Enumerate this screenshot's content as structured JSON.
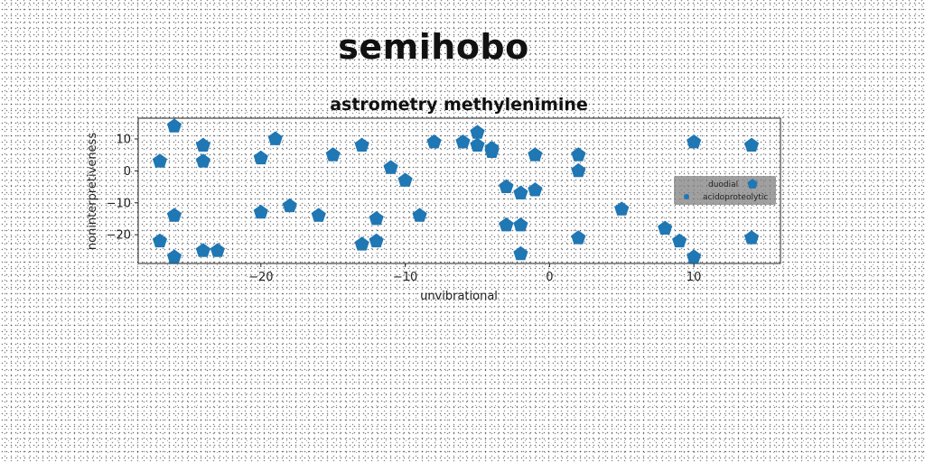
{
  "figure_title": "semihobo",
  "chart_data": {
    "type": "scatter",
    "title": "astrometry methylenimine",
    "xlabel": "unvibrational",
    "ylabel": "noninterpretiveness",
    "xlim": [
      -28.5,
      16
    ],
    "ylim": [
      -29,
      16.5
    ],
    "xticks": [
      -20,
      -10,
      0,
      10
    ],
    "yticks": [
      -20,
      -10,
      0,
      10
    ],
    "xtick_labels": [
      "−20",
      "−10",
      "0",
      "10"
    ],
    "ytick_labels": [
      "−20",
      "−10",
      "0",
      "10"
    ],
    "grid": false,
    "legend_position": "right",
    "legend_facecolor": "#808080",
    "series": [
      {
        "name": "duodial",
        "marker": "pentagon",
        "color": "#1f77b4",
        "points": [
          [
            -26,
            14
          ],
          [
            -27,
            3
          ],
          [
            -24,
            8
          ],
          [
            -24,
            3
          ],
          [
            -26,
            -14
          ],
          [
            -27,
            -22
          ],
          [
            -26,
            -27
          ],
          [
            -24,
            -25
          ],
          [
            -23,
            -25
          ],
          [
            -20,
            4
          ],
          [
            -19,
            10
          ],
          [
            -20,
            -13
          ],
          [
            -18,
            -11
          ],
          [
            -16,
            -14
          ],
          [
            -15,
            5
          ],
          [
            -13,
            8
          ],
          [
            -12,
            -15
          ],
          [
            -13,
            -23
          ],
          [
            -12,
            -22
          ],
          [
            -11,
            1
          ],
          [
            -10,
            -3
          ],
          [
            -9,
            -14
          ],
          [
            -8,
            9
          ],
          [
            -6,
            9
          ],
          [
            -5,
            12
          ],
          [
            -5,
            8
          ],
          [
            -4,
            7
          ],
          [
            -4,
            6
          ],
          [
            -3,
            -5
          ],
          [
            -2,
            -7
          ],
          [
            -3,
            -17
          ],
          [
            -2,
            -17
          ],
          [
            -2,
            -26
          ],
          [
            -1,
            5
          ],
          [
            -1,
            -6
          ],
          [
            2,
            5
          ],
          [
            2,
            0
          ],
          [
            2,
            -21
          ],
          [
            5,
            -12
          ],
          [
            8,
            -18
          ],
          [
            9,
            -22
          ],
          [
            10,
            9
          ],
          [
            10,
            -27
          ],
          [
            14,
            8
          ],
          [
            14,
            -21
          ]
        ]
      },
      {
        "name": "acidoproteolytic",
        "marker": "dot",
        "color": "#1f77b4",
        "points": []
      }
    ]
  }
}
